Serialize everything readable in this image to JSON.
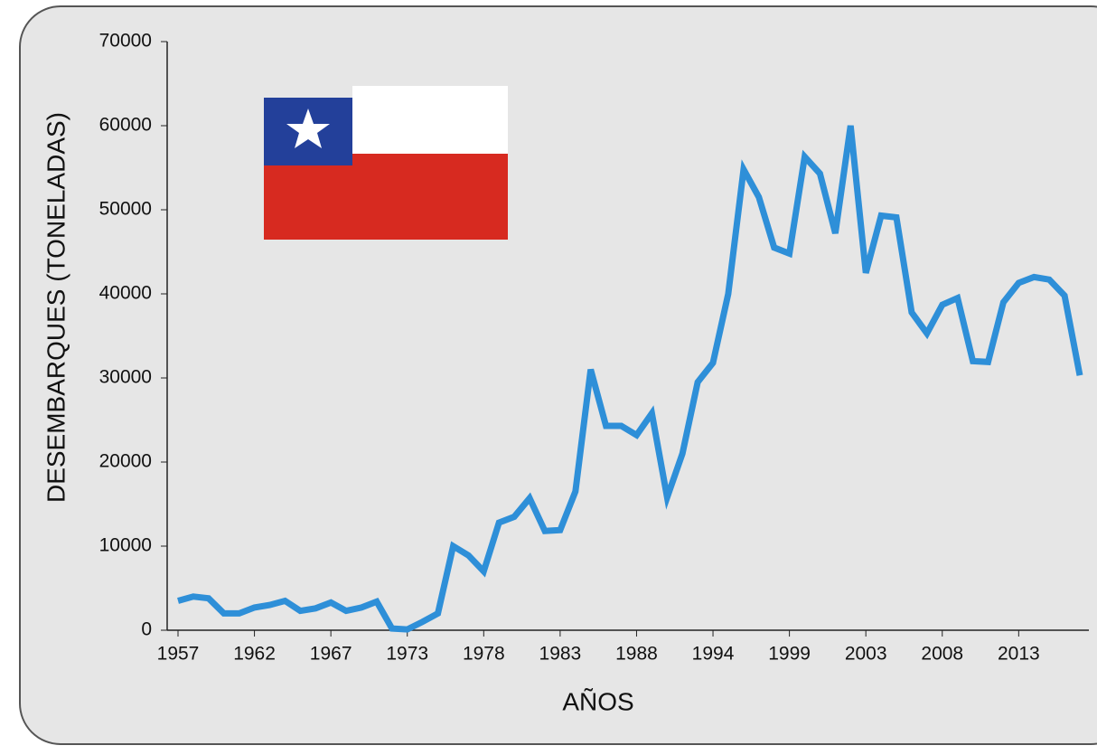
{
  "chart_data": {
    "type": "line",
    "x_label": "AÑOS",
    "y_label": "DESEMBARQUES (TONELADAS)",
    "categories": [
      "1957",
      null,
      null,
      null,
      null,
      "1962",
      null,
      null,
      null,
      null,
      "1967",
      null,
      null,
      null,
      null,
      "1973",
      null,
      null,
      null,
      null,
      "1978",
      null,
      null,
      null,
      null,
      "1983",
      null,
      null,
      null,
      null,
      "1988",
      null,
      null,
      null,
      null,
      "1994",
      null,
      null,
      null,
      null,
      "1999",
      null,
      null,
      null,
      null,
      "2003",
      null,
      null,
      null,
      null,
      "2008",
      null,
      null,
      null,
      null,
      "2013",
      null,
      null,
      null,
      null
    ],
    "values": [
      3500,
      4000,
      3800,
      2000,
      2000,
      2700,
      3000,
      3500,
      2300,
      2600,
      3300,
      2300,
      2700,
      3400,
      200,
      100,
      1000,
      2000,
      10000,
      8900,
      7000,
      12800,
      13500,
      15700,
      11800,
      11900,
      16500,
      31000,
      24300,
      24300,
      23200,
      25800,
      15800,
      21000,
      29500,
      31800,
      40000,
      54800,
      51500,
      45500,
      44800,
      56300,
      54300,
      47200,
      60000,
      42500,
      49300,
      49100,
      37800,
      35300,
      38700,
      39500,
      32000,
      31900,
      39000,
      41300,
      42000,
      41700,
      39800,
      30300
    ],
    "color": "#2e8fd8",
    "ylim": [
      0,
      70000
    ],
    "yticks": [
      0,
      10000,
      20000,
      30000,
      40000,
      50000,
      60000,
      70000
    ],
    "grid": false
  }
}
